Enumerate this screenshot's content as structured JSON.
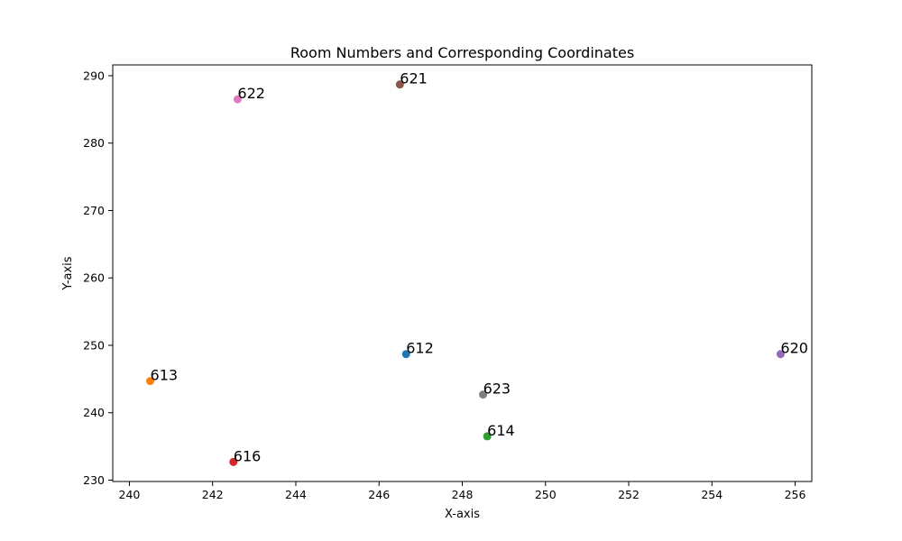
{
  "chart_data": {
    "type": "scatter",
    "title": "Room Numbers and Corresponding Coordinates",
    "xlabel": "X-axis",
    "ylabel": "Y-axis",
    "xlim": [
      239.6,
      256.4
    ],
    "ylim": [
      229.8,
      291.6
    ],
    "xticks": [
      240,
      242,
      244,
      246,
      248,
      250,
      252,
      254,
      256
    ],
    "yticks": [
      230,
      240,
      250,
      260,
      270,
      280,
      290
    ],
    "grid": false,
    "points": [
      {
        "label": "612",
        "x": 246.65,
        "y": 248.7,
        "color": "#1f77b4"
      },
      {
        "label": "613",
        "x": 240.5,
        "y": 244.7,
        "color": "#ff7f0e"
      },
      {
        "label": "614",
        "x": 248.6,
        "y": 236.5,
        "color": "#2ca02c"
      },
      {
        "label": "616",
        "x": 242.5,
        "y": 232.7,
        "color": "#d62728"
      },
      {
        "label": "620",
        "x": 255.65,
        "y": 248.7,
        "color": "#9467bd"
      },
      {
        "label": "621",
        "x": 246.5,
        "y": 288.7,
        "color": "#8c564b"
      },
      {
        "label": "622",
        "x": 242.6,
        "y": 286.5,
        "color": "#e377c2"
      },
      {
        "label": "623",
        "x": 248.5,
        "y": 242.7,
        "color": "#7f7f7f"
      }
    ]
  }
}
